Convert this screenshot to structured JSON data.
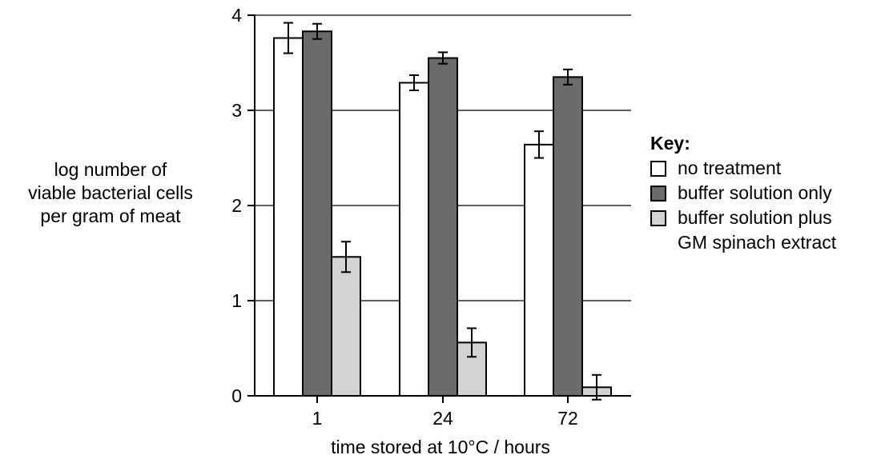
{
  "chart_data": {
    "type": "bar",
    "categories": [
      "1",
      "24",
      "72"
    ],
    "xlabel": "time stored at 10°C / hours",
    "ylabel_lines": [
      "log number of",
      "viable bacterial cells",
      "per gram of meat"
    ],
    "ylim": [
      0,
      4
    ],
    "yticks": [
      "0",
      "1",
      "2",
      "3",
      "4"
    ],
    "grid": true,
    "legend_title": "Key:",
    "legend_position": "right",
    "series": [
      {
        "name": "no treatment",
        "name_lines": [
          "no treatment"
        ],
        "color": "#ffffff",
        "values": [
          3.76,
          3.29,
          2.64
        ],
        "errors": [
          0.16,
          0.08,
          0.14
        ]
      },
      {
        "name": "buffer solution only",
        "name_lines": [
          "buffer solution only"
        ],
        "color": "#6b6b6b",
        "values": [
          3.83,
          3.55,
          3.35
        ],
        "errors": [
          0.08,
          0.06,
          0.08
        ]
      },
      {
        "name": "buffer solution plus GM spinach extract",
        "name_lines": [
          "buffer solution plus",
          "GM spinach extract"
        ],
        "color": "#d3d3d3",
        "values": [
          1.46,
          0.56,
          0.09
        ],
        "errors": [
          0.16,
          0.15,
          0.13
        ]
      }
    ]
  }
}
